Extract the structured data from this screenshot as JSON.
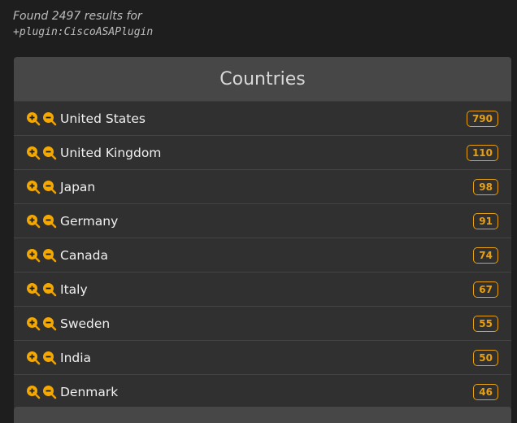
{
  "summary": {
    "found": "Found 2497 results for",
    "query": "+plugin:CiscoASAPlugin"
  },
  "panel": {
    "title": "Countries"
  },
  "accent": "#e8a010",
  "icons": {
    "zoom_in": "zoom-in-icon",
    "zoom_out": "zoom-out-icon"
  },
  "countries": [
    {
      "name": "United States",
      "count": "790"
    },
    {
      "name": "United Kingdom",
      "count": "110"
    },
    {
      "name": "Japan",
      "count": "98"
    },
    {
      "name": "Germany",
      "count": "91"
    },
    {
      "name": "Canada",
      "count": "74"
    },
    {
      "name": "Italy",
      "count": "67"
    },
    {
      "name": "Sweden",
      "count": "55"
    },
    {
      "name": "India",
      "count": "50"
    },
    {
      "name": "Denmark",
      "count": "46"
    }
  ]
}
